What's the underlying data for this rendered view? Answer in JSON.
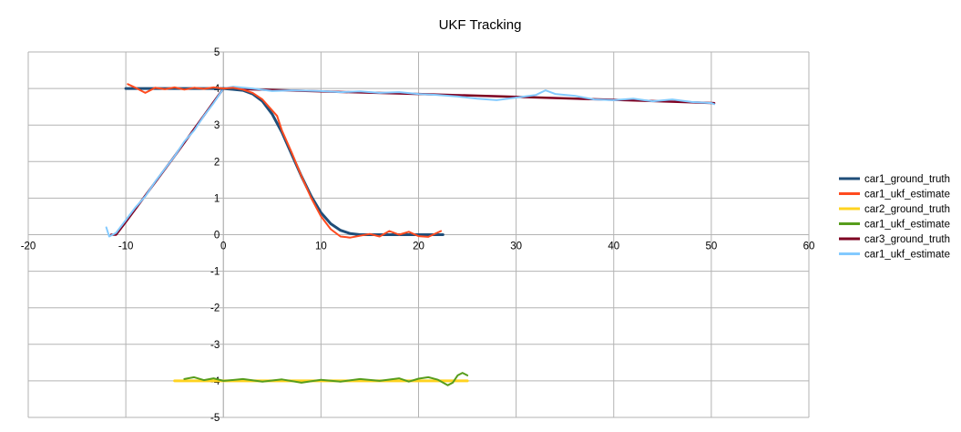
{
  "chart_data": {
    "type": "line",
    "title": "UKF Tracking",
    "xlim": [
      -20,
      60
    ],
    "ylim": [
      -5,
      5
    ],
    "xticks": [
      -20,
      -10,
      0,
      10,
      20,
      30,
      40,
      50,
      60
    ],
    "yticks": [
      5,
      4,
      3,
      2,
      1,
      0,
      -1,
      -2,
      -3,
      -4,
      -5
    ],
    "grid": true,
    "legend_position": "right",
    "series": [
      {
        "name": "car1_ground_truth",
        "color": "#1f4e79",
        "width": 3,
        "points": [
          [
            -10,
            4.0
          ],
          [
            -5,
            4.0
          ],
          [
            0,
            4.0
          ],
          [
            2,
            3.95
          ],
          [
            3,
            3.85
          ],
          [
            4,
            3.65
          ],
          [
            5,
            3.3
          ],
          [
            6,
            2.8
          ],
          [
            7,
            2.2
          ],
          [
            8,
            1.6
          ],
          [
            9,
            1.05
          ],
          [
            10,
            0.6
          ],
          [
            11,
            0.3
          ],
          [
            12,
            0.12
          ],
          [
            13,
            0.03
          ],
          [
            14,
            0.0
          ],
          [
            16,
            0.0
          ],
          [
            18,
            0.0
          ],
          [
            20,
            0.0
          ],
          [
            22.5,
            0.0
          ]
        ]
      },
      {
        "name": "car1_ukf_estimate",
        "color": "#ff4b1f",
        "width": 2,
        "points": [
          [
            -9.8,
            4.12
          ],
          [
            -9,
            4.02
          ],
          [
            -8,
            3.88
          ],
          [
            -7,
            4.02
          ],
          [
            -6,
            3.98
          ],
          [
            -5,
            4.03
          ],
          [
            -4,
            3.97
          ],
          [
            -3,
            4.02
          ],
          [
            -2,
            3.99
          ],
          [
            -1,
            4.03
          ],
          [
            0,
            4.0
          ],
          [
            1,
            4.02
          ],
          [
            2,
            3.97
          ],
          [
            3,
            3.88
          ],
          [
            4,
            3.7
          ],
          [
            5,
            3.4
          ],
          [
            5.5,
            3.25
          ],
          [
            6,
            2.85
          ],
          [
            7,
            2.25
          ],
          [
            8,
            1.6
          ],
          [
            9,
            1.0
          ],
          [
            10,
            0.5
          ],
          [
            11,
            0.15
          ],
          [
            12,
            -0.05
          ],
          [
            13,
            -0.08
          ],
          [
            14,
            -0.03
          ],
          [
            15,
            0.02
          ],
          [
            16,
            -0.05
          ],
          [
            17,
            0.1
          ],
          [
            18,
            0.0
          ],
          [
            19,
            0.08
          ],
          [
            20,
            -0.04
          ],
          [
            21,
            -0.06
          ],
          [
            22.3,
            0.1
          ]
        ]
      },
      {
        "name": "car2_ground_truth",
        "color": "#ffd320",
        "width": 3,
        "points": [
          [
            -5,
            -4.0
          ],
          [
            0,
            -4.0
          ],
          [
            10,
            -4.0
          ],
          [
            20,
            -4.0
          ],
          [
            25,
            -4.0
          ]
        ]
      },
      {
        "name": "car1_ukf_estimate",
        "color": "#579d1c",
        "width": 2,
        "points": [
          [
            -4,
            -3.95
          ],
          [
            -3,
            -3.9
          ],
          [
            -2,
            -3.98
          ],
          [
            -1,
            -3.93
          ],
          [
            0,
            -4.0
          ],
          [
            2,
            -3.95
          ],
          [
            4,
            -4.02
          ],
          [
            6,
            -3.96
          ],
          [
            8,
            -4.05
          ],
          [
            10,
            -3.97
          ],
          [
            12,
            -4.02
          ],
          [
            14,
            -3.95
          ],
          [
            16,
            -4.0
          ],
          [
            18,
            -3.93
          ],
          [
            19,
            -4.02
          ],
          [
            20,
            -3.94
          ],
          [
            21,
            -3.9
          ],
          [
            22,
            -3.97
          ],
          [
            23,
            -4.12
          ],
          [
            23.5,
            -4.05
          ],
          [
            24,
            -3.85
          ],
          [
            24.5,
            -3.78
          ],
          [
            25,
            -3.85
          ]
        ]
      },
      {
        "name": "car3_ground_truth",
        "color": "#7e0021",
        "width": 2.5,
        "points": [
          [
            -11.5,
            0.0
          ],
          [
            -11,
            0.0
          ],
          [
            -10,
            0.35
          ],
          [
            -5,
            2.15
          ],
          [
            0,
            4.0
          ],
          [
            10,
            3.92
          ],
          [
            20,
            3.85
          ],
          [
            30,
            3.77
          ],
          [
            40,
            3.69
          ],
          [
            50.3,
            3.6
          ]
        ]
      },
      {
        "name": "car1_ukf_estimate",
        "color": "#83caff",
        "width": 2,
        "points": [
          [
            -12,
            0.2
          ],
          [
            -11.7,
            -0.05
          ],
          [
            -11,
            0.05
          ],
          [
            -10,
            0.4
          ],
          [
            -9,
            0.75
          ],
          [
            -8,
            1.05
          ],
          [
            -7,
            1.45
          ],
          [
            -6,
            1.8
          ],
          [
            -5,
            2.15
          ],
          [
            -4,
            2.55
          ],
          [
            -3,
            2.85
          ],
          [
            -2,
            3.25
          ],
          [
            -1,
            3.6
          ],
          [
            0,
            4.0
          ],
          [
            1,
            4.05
          ],
          [
            3,
            4.0
          ],
          [
            5,
            3.93
          ],
          [
            7,
            3.95
          ],
          [
            10,
            3.93
          ],
          [
            12,
            3.9
          ],
          [
            14,
            3.92
          ],
          [
            16,
            3.88
          ],
          [
            18,
            3.9
          ],
          [
            20,
            3.85
          ],
          [
            22,
            3.82
          ],
          [
            24,
            3.78
          ],
          [
            26,
            3.72
          ],
          [
            28,
            3.68
          ],
          [
            30,
            3.75
          ],
          [
            32,
            3.82
          ],
          [
            33,
            3.95
          ],
          [
            34,
            3.85
          ],
          [
            36,
            3.8
          ],
          [
            38,
            3.7
          ],
          [
            40,
            3.68
          ],
          [
            42,
            3.72
          ],
          [
            44,
            3.65
          ],
          [
            46,
            3.7
          ],
          [
            48,
            3.63
          ],
          [
            50,
            3.6
          ],
          [
            50.3,
            3.57
          ]
        ]
      }
    ]
  }
}
